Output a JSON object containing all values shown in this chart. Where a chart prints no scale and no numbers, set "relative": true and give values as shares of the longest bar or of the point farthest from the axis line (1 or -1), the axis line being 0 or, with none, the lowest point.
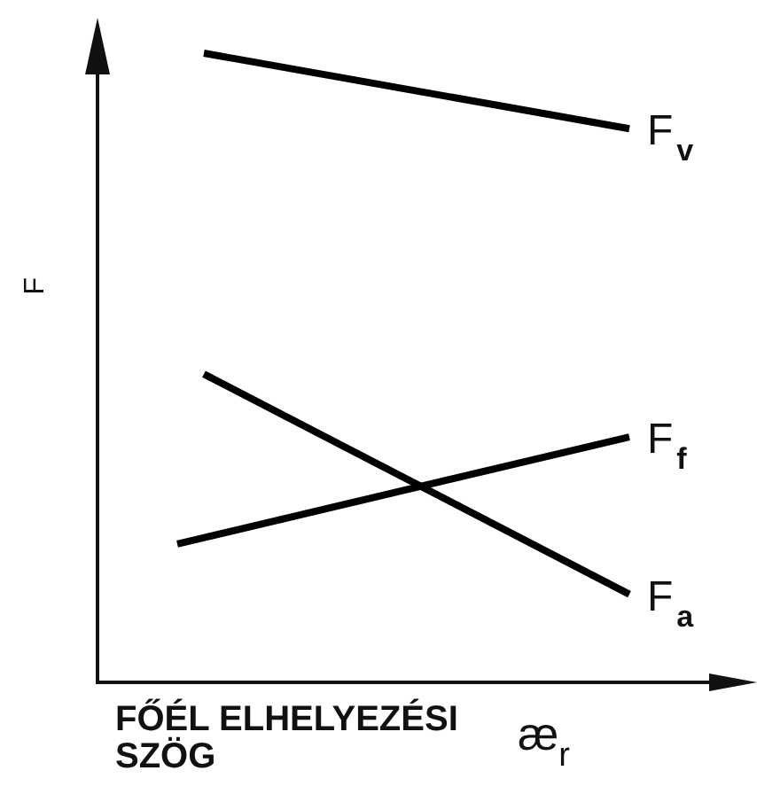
{
  "chart_data": {
    "type": "line",
    "relative": true,
    "xlabel": "FŐÉL ELHELYEZÉSI SZÖG æ$_{r}$",
    "ylabel": "F",
    "marker": "none",
    "categories": [
      null,
      null,
      null,
      null,
      null,
      null,
      null,
      null,
      null,
      null,
      null,
      null,
      null,
      null,
      null,
      null,
      null,
      null,
      null,
      null,
      null,
      null,
      null,
      null
    ],
    "series": [
      {
        "name": "F$_{v}$",
        "color": "#000000",
        "values": [
          null,
          null,
          null,
          null,
          1,
          null,
          null,
          null,
          null,
          null,
          null,
          null,
          null,
          null,
          null,
          null,
          null,
          null,
          null,
          null,
          0.88,
          null,
          null,
          null
        ]
      },
      {
        "name": "F$_{f}$",
        "color": "#000000",
        "values": [
          null,
          null,
          null,
          0.22,
          null,
          null,
          null,
          null,
          null,
          null,
          null,
          null,
          null,
          null,
          null,
          null,
          null,
          null,
          null,
          null,
          0.39,
          null,
          null,
          null
        ]
      },
      {
        "name": "F$_{a}$",
        "color": "#000000",
        "values": [
          null,
          null,
          null,
          null,
          0.49,
          null,
          null,
          null,
          null,
          null,
          null,
          null,
          null,
          null,
          null,
          null,
          null,
          null,
          null,
          null,
          0.14,
          null,
          null,
          null
        ]
      }
    ]
  }
}
